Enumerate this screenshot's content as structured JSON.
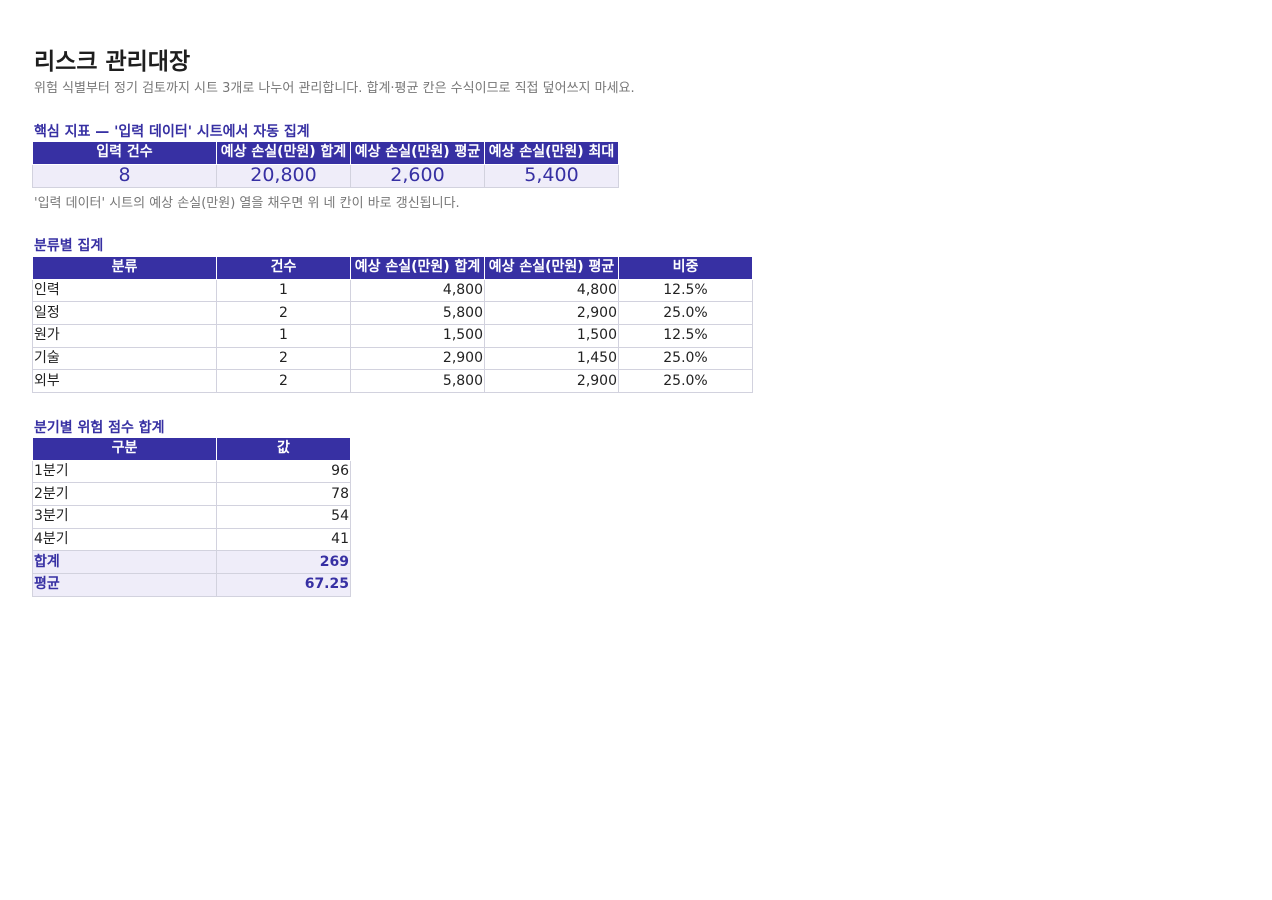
{
  "title": "리스크 관리대장",
  "subtitle": "위험 식별부터 정기 검토까지 시트 3개로 나누어 관리합니다. 합계·평균 칸은 수식이므로 직접 덮어쓰지 마세요.",
  "kpi": {
    "heading": "핵심 지표 — '입력 데이터' 시트에서 자동 집계",
    "headers": [
      "입력 건수",
      "예상 손실(만원) 합계",
      "예상 손실(만원) 평균",
      "예상 손실(만원) 최대"
    ],
    "values": [
      "8",
      "20,800",
      "2,600",
      "5,400"
    ],
    "note": "'입력 데이터' 시트의 예상 손실(만원) 열을 채우면 위 네 칸이 바로 갱신됩니다."
  },
  "category": {
    "heading": "분류별 집계",
    "headers": [
      "분류",
      "건수",
      "예상 손실(만원) 합계",
      "예상 손실(만원) 평균",
      "비중"
    ],
    "rows": [
      [
        "인력",
        "1",
        "4,800",
        "4,800",
        "12.5%"
      ],
      [
        "일정",
        "2",
        "5,800",
        "2,900",
        "25.0%"
      ],
      [
        "원가",
        "1",
        "1,500",
        "1,500",
        "12.5%"
      ],
      [
        "기술",
        "2",
        "2,900",
        "1,450",
        "25.0%"
      ],
      [
        "외부",
        "2",
        "5,800",
        "2,900",
        "25.0%"
      ]
    ]
  },
  "quarter": {
    "heading": "분기별 위험 점수 합계",
    "headers": [
      "구분",
      "값"
    ],
    "rows": [
      [
        "1분기",
        "96"
      ],
      [
        "2분기",
        "78"
      ],
      [
        "3분기",
        "54"
      ],
      [
        "4분기",
        "41"
      ]
    ],
    "summary": [
      [
        "합계",
        "269"
      ],
      [
        "평균",
        "67.25"
      ]
    ]
  }
}
